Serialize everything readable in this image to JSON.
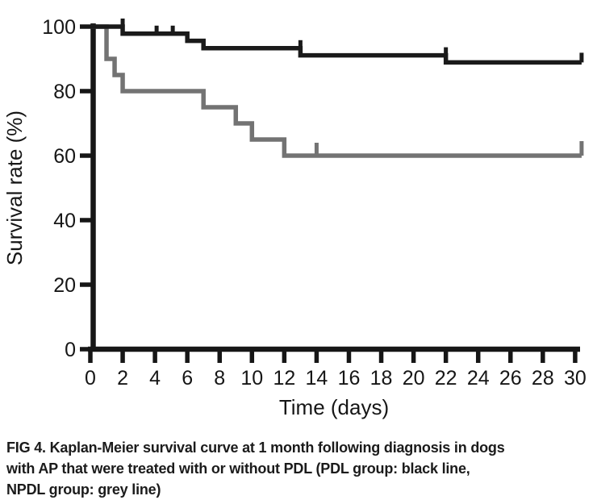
{
  "figure": {
    "caption_lines": [
      "FIG 4. Kaplan-Meier survival curve at 1 month following diagnosis in dogs",
      "with AP that were treated with or without PDL (PDL group: black line,",
      "NPDL group: grey line)"
    ]
  },
  "chart_data": {
    "type": "line",
    "subtype": "kaplan_meier_step",
    "title": "",
    "xlabel": "Time (days)",
    "ylabel": "Survival rate (%)",
    "xlim": [
      0,
      30
    ],
    "ylim": [
      0,
      100
    ],
    "xticks": [
      0,
      2,
      4,
      6,
      8,
      10,
      12,
      14,
      16,
      18,
      20,
      22,
      24,
      26,
      28,
      30
    ],
    "yticks": [
      0,
      20,
      40,
      60,
      80,
      100
    ],
    "grid": false,
    "axis_color": "#161616",
    "series": [
      {
        "name": "NPDL group",
        "legend_note": "grey line",
        "color": "#737373",
        "start": [
          0,
          100
        ],
        "steps": [
          [
            1,
            90
          ],
          [
            1.5,
            85
          ],
          [
            2,
            80
          ],
          [
            7,
            75
          ],
          [
            9,
            70
          ],
          [
            10,
            65
          ],
          [
            12,
            60
          ]
        ],
        "end_day": 30.4,
        "final_value": 60,
        "censor_marks": [
          {
            "day": 14,
            "pct": 60
          },
          {
            "day": 30.4,
            "pct": 60,
            "terminal": true
          }
        ],
        "tick_height": 16
      },
      {
        "name": "PDL group",
        "legend_note": "black line",
        "color": "#1a1a1a",
        "start": [
          0,
          100
        ],
        "steps": [
          [
            2,
            97.8
          ],
          [
            6,
            95.6
          ],
          [
            7,
            93.3
          ],
          [
            13,
            91.1
          ],
          [
            22,
            88.9
          ]
        ],
        "end_day": 30.4,
        "final_value": 88.9,
        "censor_marks": [
          {
            "day": 2,
            "pct": 100
          },
          {
            "day": 4.1,
            "pct": 97.8
          },
          {
            "day": 5.1,
            "pct": 97.8
          },
          {
            "day": 13,
            "pct": 93.3
          },
          {
            "day": 22,
            "pct": 91.1
          },
          {
            "day": 30.4,
            "pct": 88.9,
            "terminal": true
          }
        ],
        "tick_height": 10
      }
    ]
  }
}
